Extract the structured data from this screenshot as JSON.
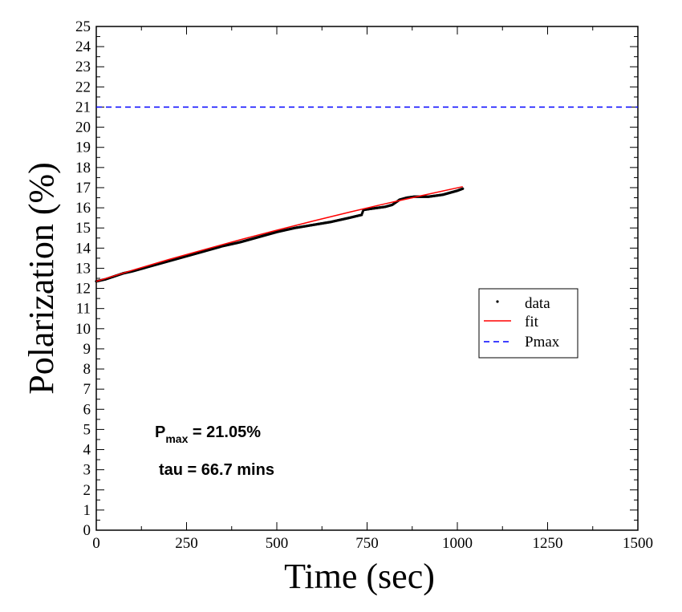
{
  "chart_data": {
    "type": "line",
    "xlabel": "Time (sec)",
    "ylabel": "Polarization (%)",
    "xlim": [
      0,
      1500
    ],
    "ylim": [
      0,
      25
    ],
    "xticks": [
      0,
      250,
      500,
      750,
      1000,
      1250,
      1500
    ],
    "yticks": [
      0,
      1,
      2,
      3,
      4,
      5,
      6,
      7,
      8,
      9,
      10,
      11,
      12,
      13,
      14,
      15,
      16,
      17,
      18,
      19,
      20,
      21,
      22,
      23,
      24,
      25
    ],
    "grid": false,
    "legend_position": "middle-right",
    "series": [
      {
        "name": "data",
        "style": "points",
        "color": "#000000",
        "x": [
          0,
          25,
          50,
          75,
          100,
          150,
          200,
          250,
          300,
          350,
          400,
          450,
          500,
          550,
          600,
          650,
          700,
          735,
          740,
          760,
          780,
          800,
          820,
          840,
          860,
          880,
          900,
          920,
          940,
          960,
          980,
          1000,
          1015
        ],
        "y": [
          12.35,
          12.45,
          12.6,
          12.75,
          12.85,
          13.1,
          13.35,
          13.6,
          13.85,
          14.1,
          14.3,
          14.55,
          14.8,
          15.0,
          15.15,
          15.3,
          15.5,
          15.65,
          15.9,
          15.95,
          16.0,
          16.05,
          16.15,
          16.4,
          16.5,
          16.55,
          16.55,
          16.55,
          16.6,
          16.65,
          16.75,
          16.85,
          16.95
        ]
      },
      {
        "name": "fit",
        "style": "line",
        "color": "#ff0000",
        "x": [
          0,
          100,
          200,
          300,
          400,
          500,
          600,
          700,
          800,
          900,
          1015
        ],
        "y": [
          12.35,
          12.9,
          13.43,
          13.93,
          14.42,
          14.89,
          15.34,
          15.78,
          16.2,
          16.6,
          17.05
        ]
      },
      {
        "name": "Pmax",
        "style": "dashed",
        "color": "#0000ff",
        "x": [
          0,
          1500
        ],
        "y": [
          21.0,
          21.0
        ]
      }
    ],
    "annotations": {
      "pmax_main": "P",
      "pmax_sub": "max",
      "pmax_value": " = 21.05%",
      "tau": "tau = 66.7 mins"
    }
  }
}
